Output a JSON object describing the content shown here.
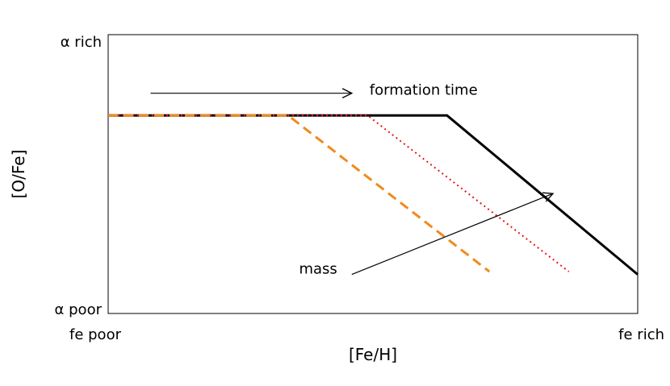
{
  "chart_data": {
    "type": "line",
    "title": "",
    "xlabel": "[Fe/H]",
    "ylabel": "[O/Fe]",
    "x_tick_labels": {
      "left": "fe poor",
      "right": "fe rich"
    },
    "y_tick_labels": {
      "top": "α rich",
      "bottom": "α poor"
    },
    "xlim": [
      0,
      1
    ],
    "ylim": [
      0,
      1
    ],
    "grid": false,
    "legend": "none",
    "series": [
      {
        "style": "solid",
        "color": "#000000",
        "x": [
          0.0,
          0.64,
          1.0
        ],
        "y": [
          0.71,
          0.71,
          0.14
        ]
      },
      {
        "style": "dotted",
        "color": "#e8141c",
        "x": [
          0.0,
          0.49,
          0.87
        ],
        "y": [
          0.71,
          0.71,
          0.15
        ]
      },
      {
        "style": "dashed",
        "color": "#f08a1e",
        "x": [
          0.0,
          0.34,
          0.72
        ],
        "y": [
          0.71,
          0.71,
          0.15
        ]
      }
    ],
    "annotations": [
      {
        "name": "formation-time",
        "text": "formation time",
        "arrow_from": [
          0.08,
          0.79
        ],
        "arrow_to": [
          0.46,
          0.79
        ]
      },
      {
        "name": "mass",
        "text": "mass",
        "arrow_from": [
          0.46,
          0.14
        ],
        "arrow_to": [
          0.84,
          0.43
        ]
      }
    ]
  }
}
